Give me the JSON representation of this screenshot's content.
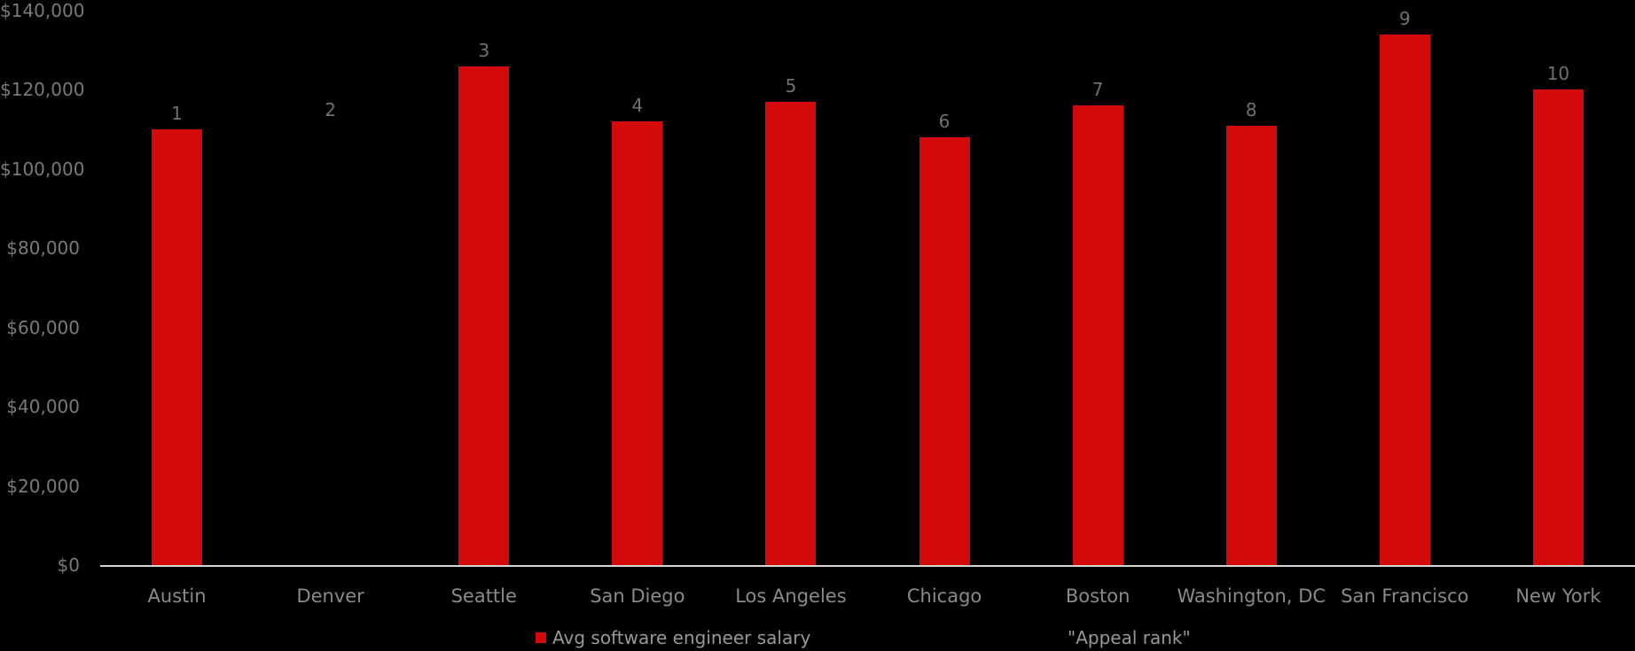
{
  "chart_data": {
    "type": "bar",
    "title": "",
    "background_color": "#000000",
    "categories": [
      "Austin",
      "Denver",
      "Seattle",
      "San Diego",
      "Los Angeles",
      "Chicago",
      "Boston",
      "Washington, DC",
      "San Francisco",
      "New York"
    ],
    "series": [
      {
        "name": "Avg software engineer salary",
        "color": "#d40a0a",
        "values": [
          110000,
          null,
          126000,
          112000,
          117000,
          108000,
          116000,
          111000,
          134000,
          120000
        ]
      },
      {
        "name": "\"Appeal rank\"",
        "labels": [
          "1",
          "2",
          "3",
          "4",
          "5",
          "6",
          "7",
          "8",
          "9",
          "10"
        ],
        "label_color": "#707070"
      }
    ],
    "y_axis": {
      "min": 0,
      "max": 140000,
      "tick_step": 20000,
      "tick_labels": [
        "$0",
        "$20,000",
        "$40,000",
        "$60,000",
        "$80,000",
        "$100,000",
        "$120,000",
        "$140,000"
      ],
      "label_color": "#7a7a7a"
    },
    "x_axis": {
      "label_color": "#8a8a8a",
      "axis_line_color": "#d4d4d4"
    },
    "grid": false,
    "legend": {
      "position": "bottom",
      "entries": [
        {
          "label": "Avg software engineer salary",
          "swatch_color": "#d40a0a"
        },
        {
          "label": "\"Appeal rank\"",
          "swatch_color": null
        }
      ]
    },
    "layout_hints": {
      "missing_bar_rank_label_anchor_value": 111000
    }
  }
}
